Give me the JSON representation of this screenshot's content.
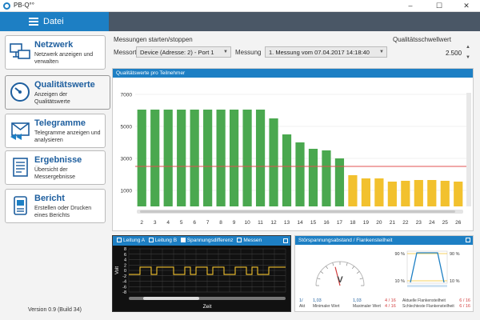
{
  "app": {
    "title": "PB-Q°°"
  },
  "window": {
    "minimize": "–",
    "maximize": "☐",
    "close": "✕"
  },
  "menu": {
    "label": "Datei"
  },
  "nav": [
    {
      "title": "Netzwerk",
      "desc": "Netzwerk anzeigen und verwalten",
      "icon": "network-icon"
    },
    {
      "title": "Qualitätswerte",
      "desc": "Anzeigen der Qualitätswerte",
      "icon": "gauge-icon"
    },
    {
      "title": "Telegramme",
      "desc": "Telegramme anzeigen und analysieren",
      "icon": "telegram-icon"
    },
    {
      "title": "Ergebnisse",
      "desc": "Übersicht der Messergebnisse",
      "icon": "results-icon"
    },
    {
      "title": "Bericht",
      "desc": "Erstellen oder Drucken eines Berichts",
      "icon": "report-icon"
    }
  ],
  "version": "Version 0.9 (Build 34)",
  "measure": {
    "section_label": "Messungen starten/stoppen",
    "location_label": "Messort",
    "location_value": "Device (Adresse: 2) - Port 1",
    "measurement_label": "Messung",
    "measurement_value": "1. Messung vom 07.04.2017 14:18:40",
    "threshold_label": "Qualitätsschwellwert",
    "threshold_value": "2.500"
  },
  "chart_panel": {
    "title": "Qualitätswerte pro Teilnehmer"
  },
  "chart_data": {
    "type": "bar",
    "categories": [
      "2",
      "3",
      "4",
      "5",
      "6",
      "7",
      "8",
      "9",
      "10",
      "11",
      "12",
      "13",
      "14",
      "15",
      "16",
      "17",
      "18",
      "19",
      "20",
      "21",
      "22",
      "23",
      "24",
      "25",
      "26"
    ],
    "values": [
      6050,
      6050,
      6050,
      6050,
      6050,
      6050,
      6050,
      6050,
      6050,
      6050,
      5500,
      4500,
      4000,
      3600,
      3500,
      3000,
      1950,
      1750,
      1750,
      1550,
      1600,
      1650,
      1650,
      1600,
      1550
    ],
    "ylim": [
      0,
      7500
    ],
    "yticks": [
      1000,
      3000,
      5000,
      7000
    ],
    "ytick_labels": [
      "1000",
      "3000",
      "5000",
      "7000"
    ],
    "threshold": 2500,
    "colors": {
      "above": "#4aa84f",
      "below": "#f2c12e",
      "threshold": "#e05050"
    }
  },
  "scope": {
    "cb1": "Leitung A",
    "cb2": "Leitung B",
    "cb3": "Spannungsdifferenz",
    "cb4": "Messen",
    "y_label": "Volt",
    "x_label": "Zeit",
    "yticks": [
      "8",
      "6",
      "4",
      "2",
      "0",
      "-2",
      "-4",
      "-6",
      "-8"
    ]
  },
  "noise": {
    "title": "Störspannungsabstand / Flankensteilheit",
    "gauge_unit": "V",
    "act_label": "1/",
    "act_sub": "Akt",
    "min_value": "1,03",
    "min_label": "Minimaler Wert",
    "max_value": "1,03",
    "max_label": "Maximaler Wert",
    "edge_pct_top": "90 %",
    "edge_pct_bottom": "10 %",
    "edge_cur_value": "4 / 16",
    "edge_cur_label": "Aktuelle Flankensteilheit",
    "edge_worst_value": "4 / 16",
    "edge_worst_label": "Schlechteste Flankensteilheit",
    "edge_r1": "6 / 16",
    "edge_r2": "6 / 16"
  }
}
